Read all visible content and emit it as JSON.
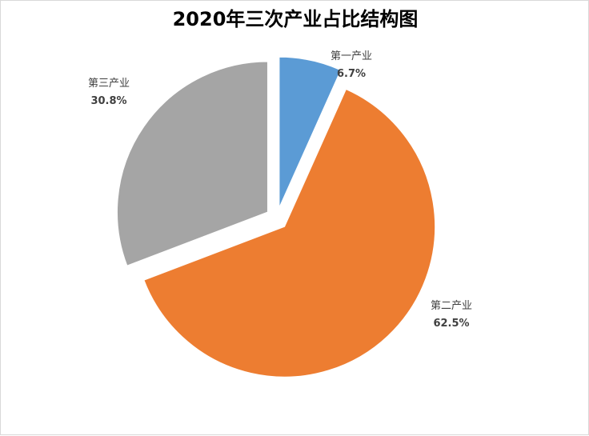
{
  "chart_data": {
    "type": "pie",
    "title": "2020年三次产业占比结构图",
    "categories": [
      "第一产业",
      "第二产业",
      "第三产业"
    ],
    "values": [
      6.7,
      62.5,
      30.8
    ],
    "value_labels": [
      "6.7%",
      "62.5%",
      "30.8%"
    ],
    "colors": [
      "#5b9bd5",
      "#ed7d31",
      "#a5a5a5"
    ],
    "exploded": true,
    "legend": "none"
  }
}
